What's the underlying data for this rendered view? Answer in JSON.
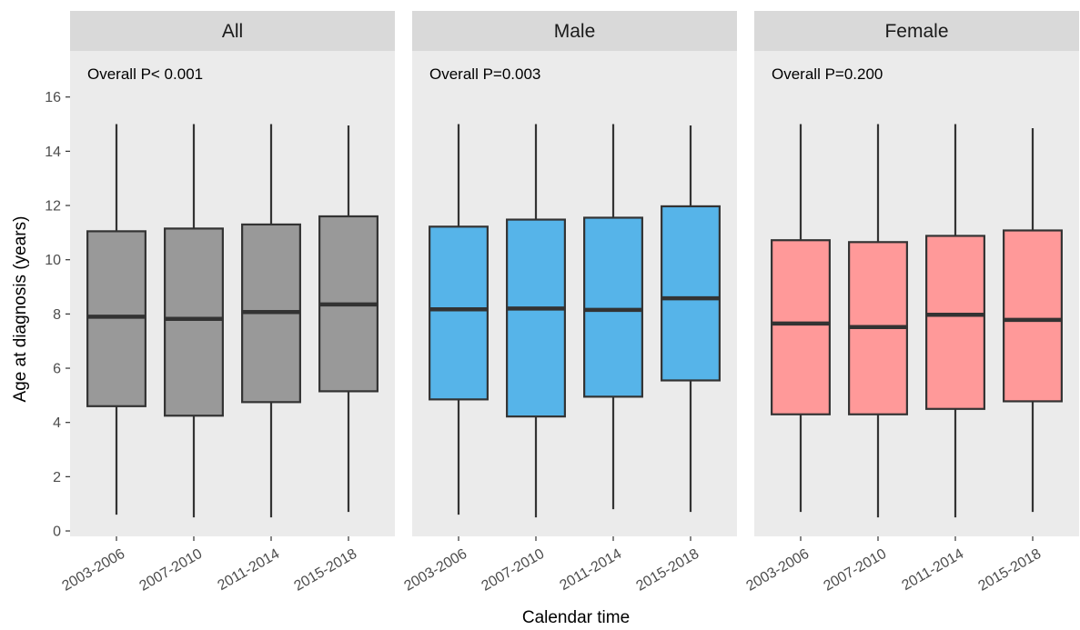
{
  "chart_data": {
    "type": "boxplot",
    "xlabel": "Calendar time",
    "ylabel": "Age at diagnosis (years)",
    "ylim": [
      -0.2,
      17.7
    ],
    "yticks": [
      0,
      2,
      4,
      6,
      8,
      10,
      12,
      14,
      16
    ],
    "categories": [
      "2003-2006",
      "2007-2010",
      "2011-2014",
      "2015-2018"
    ],
    "grid": false,
    "background": "#ebebeb",
    "strip_background": "#d9d9d9",
    "panels": [
      {
        "name": "All",
        "annotation": "Overall P< 0.001",
        "fill": "#999999",
        "boxes": [
          {
            "category": "2003-2006",
            "min": 0.6,
            "q1": 4.6,
            "median": 7.9,
            "q3": 11.05,
            "max": 15.0
          },
          {
            "category": "2007-2010",
            "min": 0.5,
            "q1": 4.25,
            "median": 7.82,
            "q3": 11.15,
            "max": 15.0
          },
          {
            "category": "2011-2014",
            "min": 0.5,
            "q1": 4.75,
            "median": 8.07,
            "q3": 11.3,
            "max": 15.0
          },
          {
            "category": "2015-2018",
            "min": 0.7,
            "q1": 5.15,
            "median": 8.35,
            "q3": 11.6,
            "max": 14.95
          }
        ]
      },
      {
        "name": "Male",
        "annotation": "Overall P=0.003",
        "fill": "#56b4e9",
        "boxes": [
          {
            "category": "2003-2006",
            "min": 0.6,
            "q1": 4.85,
            "median": 8.17,
            "q3": 11.22,
            "max": 15.0
          },
          {
            "category": "2007-2010",
            "min": 0.5,
            "q1": 4.22,
            "median": 8.2,
            "q3": 11.48,
            "max": 15.0
          },
          {
            "category": "2011-2014",
            "min": 0.8,
            "q1": 4.95,
            "median": 8.15,
            "q3": 11.55,
            "max": 15.0
          },
          {
            "category": "2015-2018",
            "min": 0.7,
            "q1": 5.55,
            "median": 8.58,
            "q3": 11.97,
            "max": 14.95
          }
        ]
      },
      {
        "name": "Female",
        "annotation": "Overall P=0.200",
        "fill": "#ff9999",
        "boxes": [
          {
            "category": "2003-2006",
            "min": 0.7,
            "q1": 4.3,
            "median": 7.65,
            "q3": 10.72,
            "max": 15.0
          },
          {
            "category": "2007-2010",
            "min": 0.5,
            "q1": 4.3,
            "median": 7.52,
            "q3": 10.65,
            "max": 15.0
          },
          {
            "category": "2011-2014",
            "min": 0.5,
            "q1": 4.5,
            "median": 7.97,
            "q3": 10.88,
            "max": 15.0
          },
          {
            "category": "2015-2018",
            "min": 0.7,
            "q1": 4.78,
            "median": 7.78,
            "q3": 11.08,
            "max": 14.85
          }
        ]
      }
    ]
  }
}
